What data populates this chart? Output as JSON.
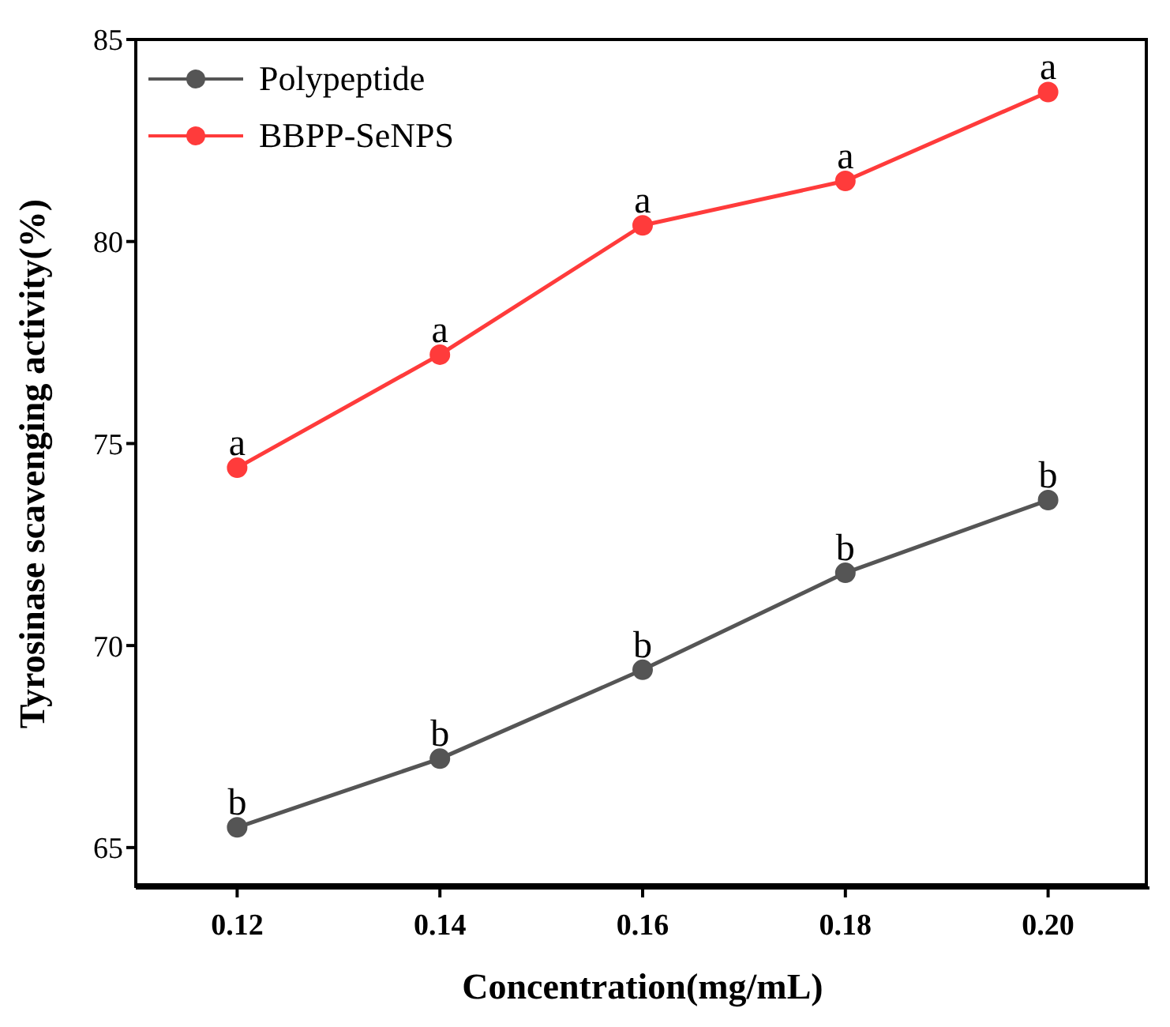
{
  "chart_data": {
    "type": "line",
    "xlabel": "Concentration(mg/mL)",
    "ylabel": "Tyrosinase scavenging activity(%)",
    "x": [
      0.12,
      0.14,
      0.16,
      0.18,
      0.2
    ],
    "series": [
      {
        "name": "Polypeptide",
        "color": "#555555",
        "values": [
          65.5,
          67.2,
          69.4,
          71.8,
          73.6
        ]
      },
      {
        "name": "BBPP-SeNPS",
        "color": "#ff3b3b",
        "values": [
          74.4,
          77.2,
          80.4,
          81.5,
          83.7
        ]
      }
    ],
    "xlim": [
      0.11,
      0.21
    ],
    "xticks": [
      {
        "value": 0.12,
        "label": "0.12"
      },
      {
        "value": 0.14,
        "label": "0.14"
      },
      {
        "value": 0.16,
        "label": "0.16"
      },
      {
        "value": 0.18,
        "label": "0.18"
      },
      {
        "value": 0.2,
        "label": "0.20"
      }
    ],
    "ylim": [
      64,
      85
    ],
    "yticks": [
      65,
      70,
      75,
      80,
      85
    ],
    "annotations": [
      {
        "text": "b",
        "x": 0.12,
        "y": 65.5
      },
      {
        "text": "b",
        "x": 0.14,
        "y": 67.2
      },
      {
        "text": "b",
        "x": 0.16,
        "y": 69.4
      },
      {
        "text": "b",
        "x": 0.18,
        "y": 71.8
      },
      {
        "text": "b",
        "x": 0.2,
        "y": 73.6
      },
      {
        "text": "a",
        "x": 0.12,
        "y": 74.4
      },
      {
        "text": "a",
        "x": 0.14,
        "y": 77.2
      },
      {
        "text": "a",
        "x": 0.16,
        "y": 80.4
      },
      {
        "text": "a",
        "x": 0.18,
        "y": 81.5
      },
      {
        "text": "a",
        "x": 0.2,
        "y": 83.7
      }
    ],
    "legend": "top left",
    "marker": "circle",
    "line_style": "solid",
    "grid": false
  }
}
